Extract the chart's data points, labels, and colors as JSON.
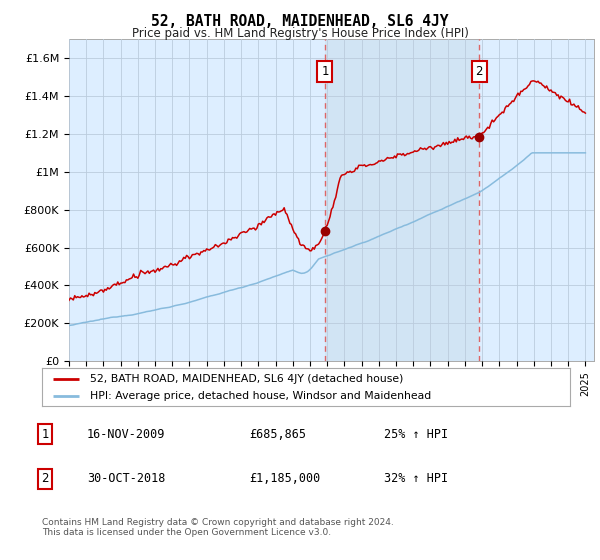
{
  "title": "52, BATH ROAD, MAIDENHEAD, SL6 4JY",
  "subtitle": "Price paid vs. HM Land Registry's House Price Index (HPI)",
  "ylabel_ticks": [
    "£0",
    "£200K",
    "£400K",
    "£600K",
    "£800K",
    "£1M",
    "£1.2M",
    "£1.4M",
    "£1.6M"
  ],
  "ytick_vals": [
    0,
    200000,
    400000,
    600000,
    800000,
    1000000,
    1200000,
    1400000,
    1600000
  ],
  "xlim": [
    1995,
    2025.5
  ],
  "ylim": [
    0,
    1700000
  ],
  "marker1": {
    "year": 2009.87,
    "value": 685865,
    "label": "1",
    "date": "16-NOV-2009",
    "price": "£685,865",
    "hpi_text": "25% ↑ HPI"
  },
  "marker2": {
    "year": 2018.83,
    "value": 1185000,
    "label": "2",
    "date": "30-OCT-2018",
    "price": "£1,185,000",
    "hpi_text": "32% ↑ HPI"
  },
  "legend_line1": "52, BATH ROAD, MAIDENHEAD, SL6 4JY (detached house)",
  "legend_line2": "HPI: Average price, detached house, Windsor and Maidenhead",
  "footnote": "Contains HM Land Registry data © Crown copyright and database right 2024.\nThis data is licensed under the Open Government Licence v3.0.",
  "line_color_red": "#cc0000",
  "line_color_blue": "#88bbdd",
  "bg_chart": "#ddeeff",
  "bg_shade": "#cce0f0",
  "bg_white": "#ffffff",
  "grid_color": "#bbccdd",
  "vline_color": "#dd6666",
  "marker_dot_color": "#990000"
}
